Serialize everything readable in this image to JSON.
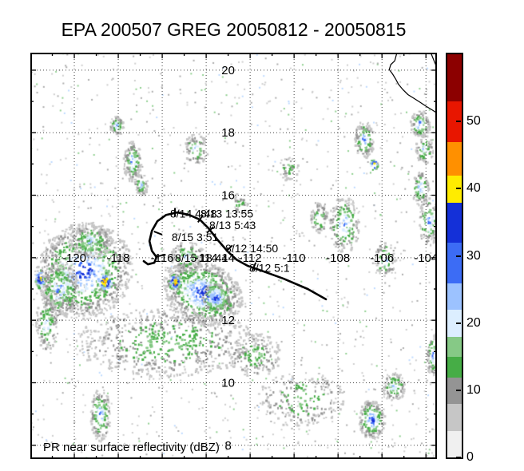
{
  "figure": {
    "title": "EPA 200507 GREG 20050812 - 20050815",
    "caption": "PR near surface reflectivity (dBZ)"
  },
  "chart_data": {
    "type": "heatmap",
    "title": "EPA 200507 GREG 20050812 - 20050815",
    "subtitle": "PR near surface reflectivity (dBZ)",
    "storm": "GREG",
    "axes": {
      "lon_min": -122.0,
      "lon_max": -103.5,
      "lat_min": 7.56,
      "lat_max": 20.56,
      "lon_ticks": [
        -120,
        -118,
        -116,
        -114,
        -112,
        -110,
        -108,
        -106,
        -104
      ],
      "lat_ticks": [
        8,
        10,
        12,
        14,
        16,
        18,
        20
      ],
      "label_cross_lon": -113.0,
      "label_cross_lat": 14.0,
      "grid_style": "dotted"
    },
    "colorbar": {
      "min": 0,
      "max": 60,
      "units": "dBZ",
      "ticks": [
        0,
        10,
        20,
        30,
        40,
        50
      ],
      "segments": [
        {
          "from": 0,
          "to": 4,
          "color": "#f0f0f0"
        },
        {
          "from": 4,
          "to": 8,
          "color": "#c6c6c6"
        },
        {
          "from": 8,
          "to": 12,
          "color": "#949494"
        },
        {
          "from": 12,
          "to": 15,
          "color": "#46ad46"
        },
        {
          "from": 15,
          "to": 18,
          "color": "#86c986"
        },
        {
          "from": 18,
          "to": 22,
          "color": "#dceeff"
        },
        {
          "from": 22,
          "to": 26,
          "color": "#9cc2ff"
        },
        {
          "from": 26,
          "to": 32,
          "color": "#3c6cf5"
        },
        {
          "from": 32,
          "to": 38,
          "color": "#1430d8"
        },
        {
          "from": 38,
          "to": 42,
          "color": "#ffec00"
        },
        {
          "from": 42,
          "to": 47,
          "color": "#ff9000"
        },
        {
          "from": 47,
          "to": 53,
          "color": "#e81600"
        },
        {
          "from": 53,
          "to": 60,
          "color": "#8c0000"
        }
      ]
    },
    "track": {
      "color": "#000000",
      "points": [
        [
          -108.55,
          12.67
        ],
        [
          -109.38,
          13.0
        ],
        [
          -110.48,
          13.33
        ],
        [
          -111.38,
          13.56
        ],
        [
          -112.11,
          13.74
        ],
        [
          -112.62,
          13.94
        ],
        [
          -113.02,
          14.2
        ],
        [
          -113.49,
          14.58
        ],
        [
          -113.89,
          14.94
        ],
        [
          -114.29,
          15.22
        ],
        [
          -114.77,
          15.37
        ],
        [
          -115.31,
          15.45
        ],
        [
          -115.82,
          15.37
        ],
        [
          -116.22,
          15.17
        ],
        [
          -116.47,
          14.86
        ],
        [
          -116.58,
          14.53
        ],
        [
          -116.47,
          14.22
        ],
        [
          -116.26,
          14.02
        ],
        [
          -116.36,
          13.84
        ],
        [
          -116.65,
          13.79
        ],
        [
          -116.84,
          13.89
        ]
      ],
      "markers": [
        [
          -111.82,
          13.72
        ],
        [
          -112.95,
          14.3
        ],
        [
          -113.82,
          14.89
        ],
        [
          -114.26,
          15.25
        ],
        [
          -115.42,
          15.45
        ],
        [
          -116.19,
          14.79
        ],
        [
          -116.04,
          14.07
        ]
      ],
      "labels": [
        {
          "text": "8/14 4:48",
          "lon": -115.64,
          "lat": 15.41
        },
        {
          "text": "8/13 13:55",
          "lon": -114.26,
          "lat": 15.41
        },
        {
          "text": "8/13 5:43",
          "lon": -113.86,
          "lat": 15.04
        },
        {
          "text": "8/15 3:51",
          "lon": -115.57,
          "lat": 14.66
        },
        {
          "text": "8/15 18:44",
          "lon": -115.42,
          "lat": 14.0
        },
        {
          "text": "8/12 14:50",
          "lon": -113.13,
          "lat": 14.3
        },
        {
          "text": "8/12 5:1",
          "lon": -112.04,
          "lat": 13.68
        }
      ]
    },
    "coastlines": [
      [
        [
          -105.32,
          20.56
        ],
        [
          -105.42,
          20.3
        ],
        [
          -105.6,
          20.18
        ],
        [
          -105.67,
          20.02
        ],
        [
          -105.52,
          19.88
        ],
        [
          -105.38,
          19.72
        ],
        [
          -105.25,
          19.55
        ],
        [
          -105.05,
          19.38
        ],
        [
          -104.82,
          19.22
        ],
        [
          -104.55,
          19.1
        ],
        [
          -104.28,
          18.98
        ],
        [
          -104.0,
          18.85
        ],
        [
          -103.7,
          18.72
        ],
        [
          -103.5,
          18.63
        ]
      ],
      [
        [
          -103.78,
          20.56
        ],
        [
          -103.62,
          20.28
        ],
        [
          -103.5,
          20.08
        ]
      ]
    ],
    "palette": {
      "ramp": [
        "#c6c6c6",
        "#949494",
        "#46ad46",
        "#86c986",
        "#dceeff",
        "#9cc2ff",
        "#3c6cf5",
        "#1430d8",
        "#ffec00",
        "#ff9000",
        "#e81600"
      ],
      "max_index": {
        "gray": 1,
        "green": 3,
        "lblue": 5,
        "blue": 6,
        "dblue": 7,
        "yellow": 8,
        "orange": 9,
        "red": 10
      }
    },
    "reflectivity_clusters": [
      {
        "lon": -119.6,
        "lat": 13.6,
        "rx": 2.3,
        "ry": 1.5,
        "rot": 135,
        "n": 950,
        "max": "dblue"
      },
      {
        "lon": -120.7,
        "lat": 13.0,
        "rx": 0.9,
        "ry": 0.9,
        "n": 260,
        "max": "blue"
      },
      {
        "lon": -119.3,
        "lat": 14.55,
        "rx": 1.0,
        "ry": 0.55,
        "n": 180,
        "max": "lblue"
      },
      {
        "lon": -118.65,
        "lat": 13.25,
        "rx": 0.35,
        "ry": 0.3,
        "n": 70,
        "max": "orange",
        "bias": 0.5
      },
      {
        "lon": -121.6,
        "lat": 13.35,
        "rx": 0.25,
        "ry": 0.3,
        "n": 45,
        "max": "yellow",
        "bias": 0.55
      },
      {
        "lon": -121.3,
        "lat": 11.9,
        "rx": 0.5,
        "ry": 0.9,
        "n": 130,
        "max": "lblue"
      },
      {
        "lon": -114.2,
        "lat": 12.9,
        "rx": 1.9,
        "ry": 1.0,
        "rot": 25,
        "n": 750,
        "max": "dblue"
      },
      {
        "lon": -113.6,
        "lat": 12.75,
        "rx": 0.6,
        "ry": 0.45,
        "n": 170,
        "max": "dblue",
        "bias": 0.8
      },
      {
        "lon": -115.45,
        "lat": 13.25,
        "rx": 0.3,
        "ry": 0.25,
        "n": 55,
        "max": "orange",
        "bias": 0.5
      },
      {
        "lon": -114.9,
        "lat": 14.05,
        "rx": 0.8,
        "ry": 0.5,
        "n": 130,
        "max": "lblue"
      },
      {
        "lon": -115.8,
        "lat": 11.3,
        "rx": 4.2,
        "ry": 1.1,
        "n": 650,
        "max": "green"
      },
      {
        "lon": -111.8,
        "lat": 10.9,
        "rx": 1.2,
        "ry": 0.7,
        "n": 170,
        "max": "green"
      },
      {
        "lon": -118.85,
        "lat": 9.0,
        "rx": 0.45,
        "ry": 0.85,
        "n": 150,
        "max": "blue"
      },
      {
        "lon": -118.1,
        "lat": 18.25,
        "rx": 0.3,
        "ry": 0.3,
        "n": 70,
        "max": "blue"
      },
      {
        "lon": -117.4,
        "lat": 17.1,
        "rx": 0.4,
        "ry": 0.65,
        "n": 140,
        "max": "blue"
      },
      {
        "lon": -117.0,
        "lat": 16.35,
        "rx": 0.3,
        "ry": 0.35,
        "n": 60,
        "max": "lblue"
      },
      {
        "lon": -114.5,
        "lat": 17.5,
        "rx": 0.55,
        "ry": 0.5,
        "n": 80,
        "max": "lblue"
      },
      {
        "lon": -112.5,
        "lat": 15.75,
        "rx": 0.35,
        "ry": 0.35,
        "n": 40,
        "max": "green"
      },
      {
        "lon": -110.3,
        "lat": 16.9,
        "rx": 0.45,
        "ry": 0.4,
        "n": 45,
        "max": "green"
      },
      {
        "lon": -108.9,
        "lat": 15.3,
        "rx": 0.4,
        "ry": 0.5,
        "n": 70,
        "max": "lblue"
      },
      {
        "lon": -107.75,
        "lat": 15.1,
        "rx": 0.7,
        "ry": 0.9,
        "n": 180,
        "max": "blue"
      },
      {
        "lon": -106.4,
        "lat": 17.0,
        "rx": 0.18,
        "ry": 0.18,
        "n": 20,
        "max": "orange",
        "bias": 0.5
      },
      {
        "lon": -106.85,
        "lat": 17.8,
        "rx": 0.45,
        "ry": 0.6,
        "n": 120,
        "max": "blue"
      },
      {
        "lon": -104.3,
        "lat": 18.3,
        "rx": 0.45,
        "ry": 0.45,
        "n": 100,
        "max": "blue"
      },
      {
        "lon": -104.1,
        "lat": 17.5,
        "rx": 0.4,
        "ry": 0.5,
        "n": 80,
        "max": "lblue"
      },
      {
        "lon": -104.3,
        "lat": 16.25,
        "rx": 0.4,
        "ry": 0.55,
        "n": 90,
        "max": "blue"
      },
      {
        "lon": -103.9,
        "lat": 15.2,
        "rx": 0.45,
        "ry": 0.8,
        "n": 110,
        "max": "blue"
      },
      {
        "lon": -105.9,
        "lat": 14.0,
        "rx": 0.5,
        "ry": 0.6,
        "n": 70,
        "max": "lblue"
      },
      {
        "lon": -106.5,
        "lat": 8.85,
        "rx": 0.6,
        "ry": 0.65,
        "n": 190,
        "max": "dblue"
      },
      {
        "lon": -105.5,
        "lat": 9.9,
        "rx": 0.55,
        "ry": 0.45,
        "n": 110,
        "max": "lblue"
      },
      {
        "lon": -103.7,
        "lat": 10.9,
        "rx": 0.35,
        "ry": 0.65,
        "n": 90,
        "max": "blue"
      },
      {
        "lon": -109.7,
        "lat": 9.5,
        "rx": 2.0,
        "ry": 0.9,
        "n": 220,
        "max": "green"
      }
    ],
    "speckle": {
      "seed": 20050812,
      "n": 1150,
      "colors": [
        "#cdcdcd",
        "#ababab",
        "#8fcf8f",
        "#bcd9ff"
      ]
    }
  }
}
